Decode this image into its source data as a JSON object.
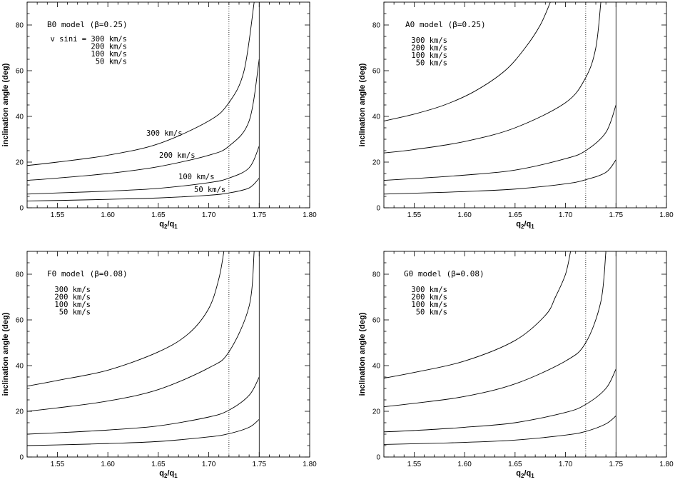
{
  "chart_data": [
    {
      "type": "line",
      "title": "B0 model (β=0.25)",
      "xlabel": "q2/q1",
      "ylabel": "inclination angle (deg)",
      "xlim": [
        1.52,
        1.8
      ],
      "ylim": [
        0,
        90
      ],
      "x_ticks": [
        "1.55",
        "1.60",
        "1.65",
        "1.70",
        "1.75",
        "1.80"
      ],
      "y_ticks": [
        "0",
        "20",
        "40",
        "60",
        "80"
      ],
      "legend": [
        "v sini = 300 km/s",
        "200 km/s",
        "100 km/s",
        "50 km/s"
      ],
      "curve_labels": [
        "300 km/s",
        "200 km/s",
        "100 km/s",
        "50 km/s"
      ],
      "reference_lines": [
        {
          "x": 1.72,
          "style": "dotted"
        },
        {
          "x": 1.75,
          "style": "solid"
        }
      ],
      "series": [
        {
          "name": "300 km/s",
          "x": [
            1.52,
            1.55,
            1.6,
            1.65,
            1.7,
            1.72,
            1.735,
            1.745
          ],
          "values": [
            18.5,
            20,
            23,
            28,
            38,
            46,
            60,
            90
          ]
        },
        {
          "name": "200 km/s",
          "x": [
            1.52,
            1.55,
            1.6,
            1.65,
            1.7,
            1.72,
            1.74,
            1.75
          ],
          "values": [
            12,
            13,
            15,
            18,
            23,
            27,
            38,
            65
          ]
        },
        {
          "name": "100 km/s",
          "x": [
            1.52,
            1.55,
            1.6,
            1.65,
            1.7,
            1.72,
            1.74,
            1.75
          ],
          "values": [
            6,
            6.5,
            7.3,
            8.5,
            11,
            13,
            17.5,
            27
          ]
        },
        {
          "name": "50 km/s",
          "x": [
            1.52,
            1.55,
            1.6,
            1.65,
            1.7,
            1.72,
            1.74,
            1.75
          ],
          "values": [
            3,
            3.2,
            3.7,
            4.3,
            5.5,
            6.5,
            8.7,
            13
          ]
        }
      ]
    },
    {
      "type": "line",
      "title": "A0 model (β=0.25)",
      "xlabel": "q2/q1",
      "ylabel": "inclination angle (deg)",
      "xlim": [
        1.52,
        1.8
      ],
      "ylim": [
        0,
        90
      ],
      "x_ticks": [
        "1.55",
        "1.60",
        "1.65",
        "1.70",
        "1.75",
        "1.80"
      ],
      "y_ticks": [
        "0",
        "20",
        "40",
        "60",
        "80"
      ],
      "legend": [
        "300 km/s",
        "200 km/s",
        "100 km/s",
        "50 km/s"
      ],
      "reference_lines": [
        {
          "x": 1.72,
          "style": "dotted"
        },
        {
          "x": 1.75,
          "style": "solid"
        }
      ],
      "series": [
        {
          "name": "300 km/s",
          "x": [
            1.52,
            1.55,
            1.58,
            1.61,
            1.64,
            1.66,
            1.675,
            1.685
          ],
          "values": [
            38,
            41,
            45,
            51,
            60,
            70,
            80,
            90
          ]
        },
        {
          "name": "200 km/s",
          "x": [
            1.52,
            1.55,
            1.6,
            1.65,
            1.7,
            1.72,
            1.73,
            1.735
          ],
          "values": [
            24,
            25.5,
            29,
            35,
            46,
            57,
            70,
            90
          ]
        },
        {
          "name": "100 km/s",
          "x": [
            1.52,
            1.55,
            1.6,
            1.65,
            1.7,
            1.72,
            1.74,
            1.75
          ],
          "values": [
            12,
            12.8,
            14.3,
            16.5,
            21.5,
            25,
            33,
            45
          ]
        },
        {
          "name": "50 km/s",
          "x": [
            1.52,
            1.55,
            1.6,
            1.65,
            1.7,
            1.72,
            1.74,
            1.75
          ],
          "values": [
            6,
            6.4,
            7.1,
            8.2,
            10.5,
            12.3,
            15.5,
            21
          ]
        }
      ]
    },
    {
      "type": "line",
      "title": "F0 model (β=0.08)",
      "xlabel": "q2/q1",
      "ylabel": "inclination angle (deg)",
      "xlim": [
        1.52,
        1.8
      ],
      "ylim": [
        0,
        90
      ],
      "x_ticks": [
        "1.55",
        "1.60",
        "1.65",
        "1.70",
        "1.75",
        "1.80"
      ],
      "y_ticks": [
        "0",
        "20",
        "40",
        "60",
        "80"
      ],
      "legend": [
        "300 km/s",
        "200 km/s",
        "100 km/s",
        "50 km/s"
      ],
      "reference_lines": [
        {
          "x": 1.72,
          "style": "dotted"
        },
        {
          "x": 1.75,
          "style": "solid"
        }
      ],
      "series": [
        {
          "name": "300 km/s",
          "x": [
            1.52,
            1.55,
            1.6,
            1.65,
            1.68,
            1.7,
            1.71,
            1.715
          ],
          "values": [
            31,
            33.5,
            38,
            46,
            54,
            65,
            78,
            90
          ]
        },
        {
          "name": "200 km/s",
          "x": [
            1.52,
            1.55,
            1.6,
            1.65,
            1.7,
            1.72,
            1.74,
            1.745
          ],
          "values": [
            20,
            21.5,
            24.5,
            29.5,
            39,
            46,
            66,
            90
          ]
        },
        {
          "name": "100 km/s",
          "x": [
            1.52,
            1.55,
            1.6,
            1.65,
            1.7,
            1.72,
            1.74,
            1.75
          ],
          "values": [
            10,
            10.6,
            11.8,
            13.6,
            17.5,
            20.5,
            27,
            35
          ]
        },
        {
          "name": "50 km/s",
          "x": [
            1.52,
            1.55,
            1.6,
            1.65,
            1.7,
            1.72,
            1.74,
            1.75
          ],
          "values": [
            5,
            5.3,
            5.9,
            6.8,
            8.8,
            10.2,
            13,
            16.5
          ]
        }
      ]
    },
    {
      "type": "line",
      "title": "G0 model (β=0.08)",
      "xlabel": "q2/q1",
      "ylabel": "inclination angle (deg)",
      "xlim": [
        1.52,
        1.8
      ],
      "ylim": [
        0,
        90
      ],
      "x_ticks": [
        "1.55",
        "1.60",
        "1.65",
        "1.70",
        "1.75",
        "1.80"
      ],
      "y_ticks": [
        "0",
        "20",
        "40",
        "60",
        "80"
      ],
      "legend": [
        "300 km/s",
        "200 km/s",
        "100 km/s",
        "50 km/s"
      ],
      "reference_lines": [
        {
          "x": 1.72,
          "style": "dotted"
        },
        {
          "x": 1.75,
          "style": "solid"
        }
      ],
      "series": [
        {
          "name": "300 km/s",
          "x": [
            1.52,
            1.55,
            1.6,
            1.65,
            1.68,
            1.69,
            1.7,
            1.705
          ],
          "values": [
            34.5,
            37,
            42,
            51,
            62,
            70,
            80,
            90
          ]
        },
        {
          "name": "200 km/s",
          "x": [
            1.52,
            1.55,
            1.6,
            1.65,
            1.7,
            1.72,
            1.735,
            1.74
          ],
          "values": [
            22,
            23.5,
            26.5,
            32,
            42,
            50,
            68,
            90
          ]
        },
        {
          "name": "100 km/s",
          "x": [
            1.52,
            1.55,
            1.6,
            1.65,
            1.7,
            1.72,
            1.74,
            1.75
          ],
          "values": [
            11,
            11.6,
            13,
            15,
            19.5,
            23,
            30,
            38.5
          ]
        },
        {
          "name": "50 km/s",
          "x": [
            1.52,
            1.55,
            1.6,
            1.65,
            1.7,
            1.72,
            1.74,
            1.75
          ],
          "values": [
            5.5,
            5.8,
            6.4,
            7.4,
            9.6,
            11.2,
            14.5,
            18
          ]
        }
      ]
    }
  ]
}
